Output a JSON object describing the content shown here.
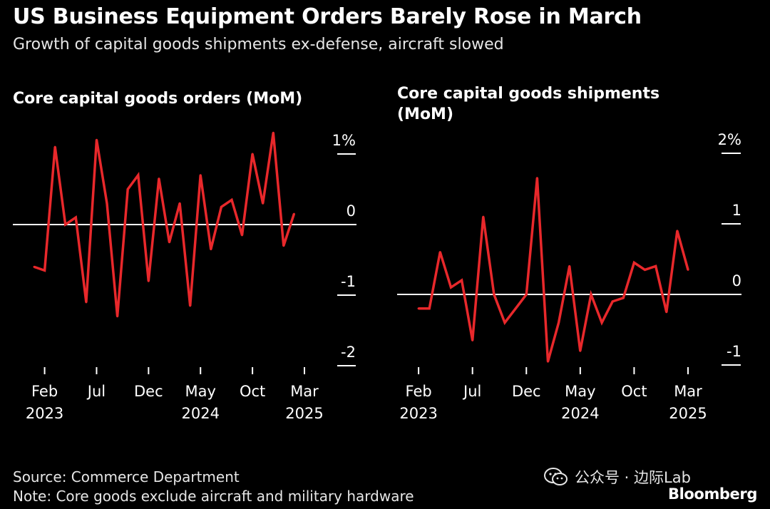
{
  "header": {
    "title": "US Business Equipment Orders Barely Rose in March",
    "subtitle": "Growth of capital goods shipments ex-defense, aircraft slowed"
  },
  "footer": {
    "source": "Source: Commerce Department",
    "note": "Note: Core goods exclude aircraft and military hardware",
    "watermark": "公众号 · 边际Lab",
    "brand": "Bloomberg"
  },
  "colors": {
    "background": "#000000",
    "line": "#e8282b",
    "axis": "#ffffff",
    "text": "#ffffff"
  },
  "icons": {
    "watermark_icon": "wechat-icon"
  },
  "chart_data": [
    {
      "type": "line",
      "title": "Core capital goods orders (MoM)",
      "ylim": [
        -2.3,
        1.3
      ],
      "yticks": [
        {
          "value": 1,
          "label": "1%"
        },
        {
          "value": 0,
          "label": "0"
        },
        {
          "value": -1,
          "label": "-1"
        },
        {
          "value": -2,
          "label": "-2"
        }
      ],
      "xticks": [
        {
          "index": 1,
          "label": "Feb",
          "year": "2023"
        },
        {
          "index": 6,
          "label": "Jul",
          "year": ""
        },
        {
          "index": 11,
          "label": "Dec",
          "year": ""
        },
        {
          "index": 16,
          "label": "May",
          "year": "2024"
        },
        {
          "index": 21,
          "label": "Oct",
          "year": ""
        },
        {
          "index": 26,
          "label": "Mar",
          "year": "2025"
        }
      ],
      "series": [
        {
          "x": [
            "Jan 2023",
            "Feb 2023",
            "Mar 2023",
            "Apr 2023",
            "May 2023",
            "Jun 2023",
            "Jul 2023",
            "Aug 2023",
            "Sep 2023",
            "Oct 2023",
            "Nov 2023",
            "Dec 2023",
            "Jan 2024",
            "Feb 2024",
            "Mar 2024",
            "Apr 2024",
            "May 2024",
            "Jun 2024",
            "Jul 2024",
            "Aug 2024",
            "Sep 2024",
            "Oct 2024",
            "Nov 2024",
            "Dec 2024",
            "Jan 2025",
            "Feb 2025",
            "Mar 2025"
          ],
          "values": [
            -0.6,
            -0.65,
            1.1,
            0.0,
            0.1,
            -1.1,
            1.2,
            0.3,
            -1.3,
            0.5,
            0.7,
            -0.8,
            0.65,
            -0.25,
            0.3,
            -1.15,
            0.7,
            -0.35,
            0.25,
            0.35,
            -0.15,
            1.0,
            0.3,
            1.3,
            -0.3,
            0.15,
            null
          ]
        }
      ]
    },
    {
      "type": "line",
      "title": "Core capital goods shipments (MoM)",
      "ylim": [
        -1.3,
        2.3
      ],
      "yticks": [
        {
          "value": 2,
          "label": "2%"
        },
        {
          "value": 1,
          "label": "1"
        },
        {
          "value": 0,
          "label": "0"
        },
        {
          "value": -1,
          "label": "-1"
        }
      ],
      "xticks": [
        {
          "index": 1,
          "label": "Feb",
          "year": "2023"
        },
        {
          "index": 6,
          "label": "Jul",
          "year": ""
        },
        {
          "index": 11,
          "label": "Dec",
          "year": ""
        },
        {
          "index": 16,
          "label": "May",
          "year": "2024"
        },
        {
          "index": 21,
          "label": "Oct",
          "year": ""
        },
        {
          "index": 26,
          "label": "Mar",
          "year": "2025"
        }
      ],
      "series": [
        {
          "x": [
            "Jan 2023",
            "Feb 2023",
            "Mar 2023",
            "Apr 2023",
            "May 2023",
            "Jun 2023",
            "Jul 2023",
            "Aug 2023",
            "Sep 2023",
            "Oct 2023",
            "Nov 2023",
            "Dec 2023",
            "Jan 2024",
            "Feb 2024",
            "Mar 2024",
            "Apr 2024",
            "May 2024",
            "Jun 2024",
            "Jul 2024",
            "Aug 2024",
            "Sep 2024",
            "Oct 2024",
            "Nov 2024",
            "Dec 2024",
            "Jan 2025",
            "Feb 2025",
            "Mar 2025"
          ],
          "values": [
            null,
            -0.2,
            -0.2,
            0.6,
            0.1,
            0.2,
            -0.65,
            1.1,
            0.0,
            -0.4,
            -0.2,
            0.0,
            1.65,
            -0.95,
            -0.4,
            0.4,
            -0.8,
            0.0,
            -0.4,
            -0.1,
            -0.05,
            0.45,
            0.35,
            0.4,
            -0.25,
            0.9,
            0.35
          ]
        }
      ]
    }
  ]
}
